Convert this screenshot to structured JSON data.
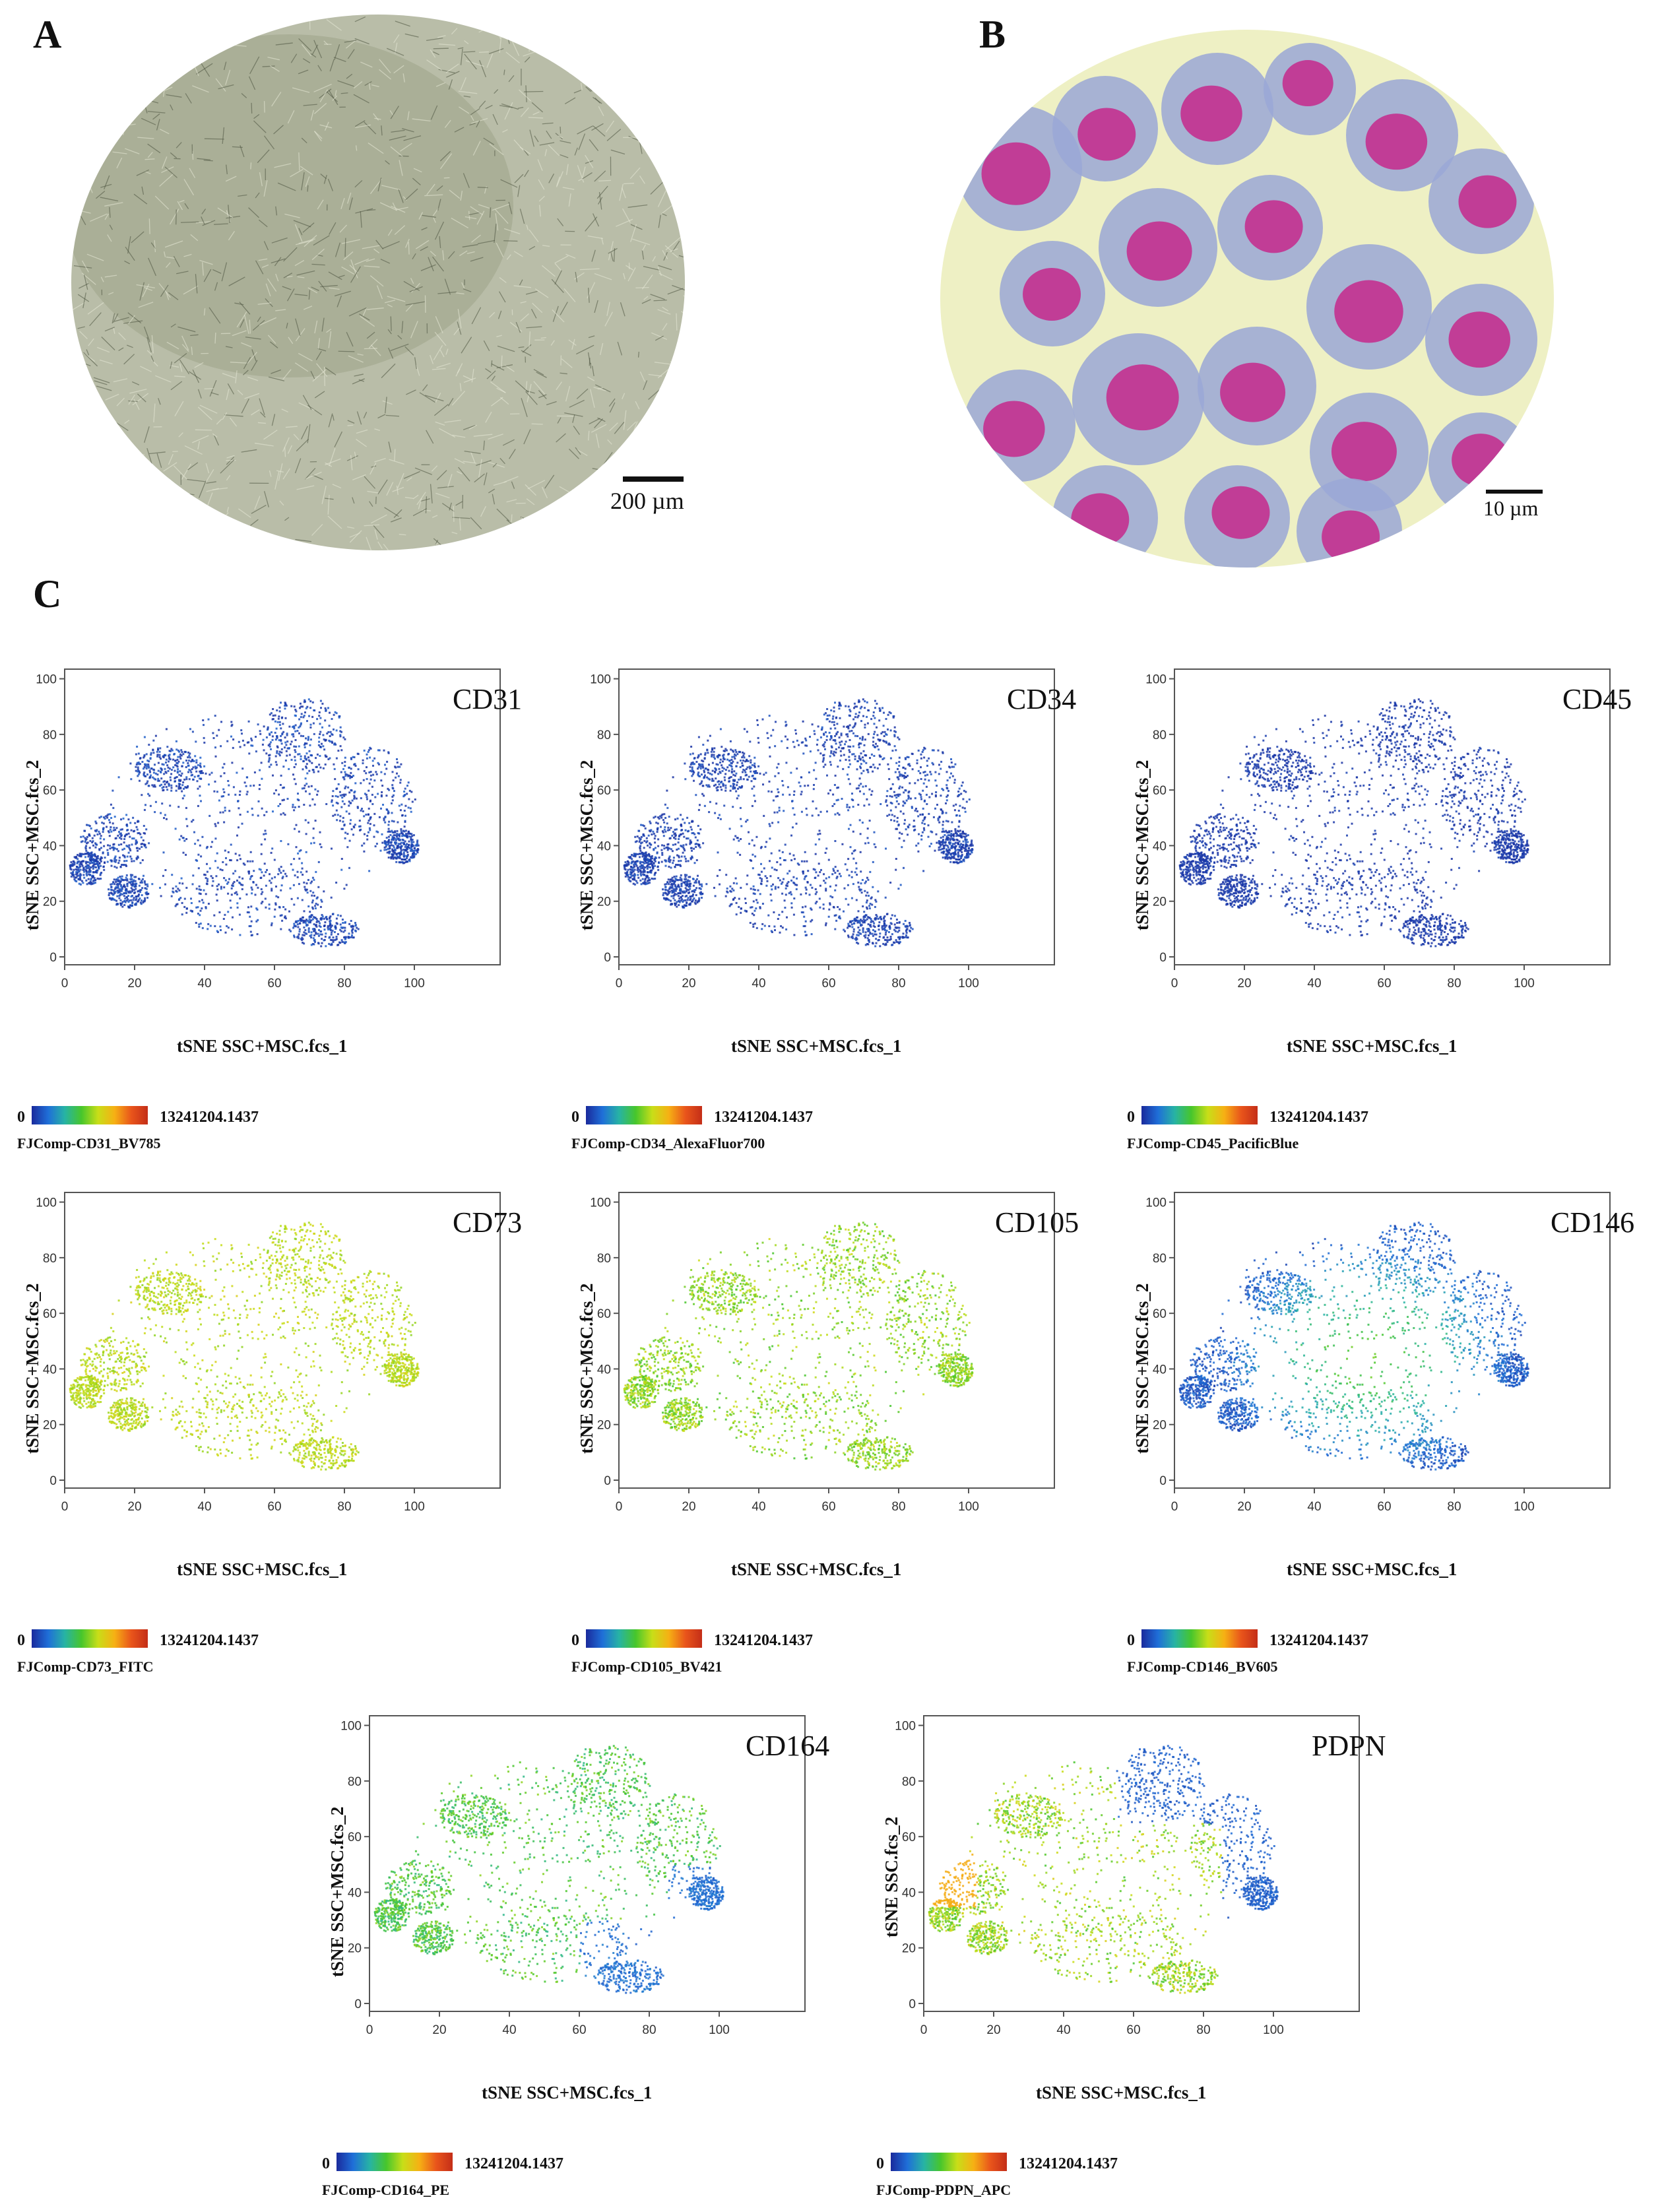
{
  "panels": {
    "a": {
      "letter": "A",
      "scale_label": "200 µm"
    },
    "b": {
      "letter": "B",
      "scale_label": "10 µm"
    },
    "c": {
      "letter": "C"
    }
  },
  "colorbar": {
    "min_label": "0",
    "max_label": "13241204.1437"
  },
  "colors": {
    "gradient": [
      "#1a2a9c",
      "#1f6fd8",
      "#27b3a4",
      "#47c62c",
      "#c8de18",
      "#f6b014",
      "#e9551b",
      "#c42e18"
    ],
    "micro_a_bg": "#b9bda8",
    "micro_b_bg": "#eef0c4"
  },
  "chart_data": [
    {
      "type": "scatter",
      "marker": "CD31",
      "title": "CD31",
      "xlabel": "tSNE SSC+MSC.fcs_1",
      "ylabel": "tSNE SSC+MSC.fcs_2",
      "xlim": [
        0,
        100
      ],
      "ylim": [
        0,
        100
      ],
      "x_ticks": [
        "0",
        "20",
        "40",
        "60",
        "80",
        "100"
      ],
      "y_ticks": [
        "0",
        "20",
        "40",
        "60",
        "80",
        "100"
      ],
      "channel": "FJComp-CD31_BV785",
      "level_low": 0.02,
      "level_high": 0.12,
      "pattern": "low"
    },
    {
      "type": "scatter",
      "marker": "CD34",
      "title": "CD34",
      "xlabel": "tSNE SSC+MSC.fcs_1",
      "ylabel": "tSNE SSC+MSC.fcs_2",
      "xlim": [
        0,
        100
      ],
      "ylim": [
        0,
        100
      ],
      "x_ticks": [
        "0",
        "20",
        "40",
        "60",
        "80",
        "100"
      ],
      "y_ticks": [
        "0",
        "20",
        "40",
        "60",
        "80",
        "100"
      ],
      "channel": "FJComp-CD34_AlexaFluor700",
      "level_low": 0.02,
      "level_high": 0.1,
      "pattern": "low"
    },
    {
      "type": "scatter",
      "marker": "CD45",
      "title": "CD45",
      "xlabel": "tSNE SSC+MSC.fcs_1",
      "ylabel": "tSNE SSC+MSC.fcs_2",
      "xlim": [
        0,
        100
      ],
      "ylim": [
        0,
        100
      ],
      "x_ticks": [
        "0",
        "20",
        "40",
        "60",
        "80",
        "100"
      ],
      "y_ticks": [
        "0",
        "20",
        "40",
        "60",
        "80",
        "100"
      ],
      "channel": "FJComp-CD45_PacificBlue",
      "level_low": 0.02,
      "level_high": 0.06,
      "pattern": "low"
    },
    {
      "type": "scatter",
      "marker": "CD73",
      "title": "CD73",
      "xlabel": "tSNE SSC+MSC.fcs_1",
      "ylabel": "tSNE SSC+MSC.fcs_2",
      "xlim": [
        0,
        100
      ],
      "ylim": [
        0,
        100
      ],
      "x_ticks": [
        "0",
        "20",
        "40",
        "60",
        "80",
        "100"
      ],
      "y_ticks": [
        "0",
        "20",
        "40",
        "60",
        "80",
        "100"
      ],
      "channel": "FJComp-CD73_FITC",
      "level_low": 0.5,
      "level_high": 0.62,
      "pattern": "uniform"
    },
    {
      "type": "scatter",
      "marker": "CD105",
      "title": "CD105",
      "xlabel": "tSNE SSC+MSC.fcs_1",
      "ylabel": "tSNE SSC+MSC.fcs_2",
      "xlim": [
        0,
        100
      ],
      "ylim": [
        0,
        100
      ],
      "x_ticks": [
        "0",
        "20",
        "40",
        "60",
        "80",
        "100"
      ],
      "y_ticks": [
        "0",
        "20",
        "40",
        "60",
        "80",
        "100"
      ],
      "channel": "FJComp-CD105_BV421",
      "level_low": 0.42,
      "level_high": 0.6,
      "pattern": "uniform"
    },
    {
      "type": "scatter",
      "marker": "CD146",
      "title": "CD146",
      "xlabel": "tSNE SSC+MSC.fcs_1",
      "ylabel": "tSNE SSC+MSC.fcs_2",
      "xlim": [
        0,
        100
      ],
      "ylim": [
        0,
        100
      ],
      "x_ticks": [
        "0",
        "20",
        "40",
        "60",
        "80",
        "100"
      ],
      "y_ticks": [
        "0",
        "20",
        "40",
        "60",
        "80",
        "100"
      ],
      "channel": "FJComp-CD146_BV605",
      "level_low": 0.1,
      "level_high": 0.5,
      "pattern": "center"
    },
    {
      "type": "scatter",
      "marker": "CD164",
      "title": "CD164",
      "xlabel": "tSNE SSC+MSC.fcs_1",
      "ylabel": "tSNE SSC+MSC.fcs_2",
      "xlim": [
        0,
        100
      ],
      "ylim": [
        0,
        100
      ],
      "x_ticks": [
        "0",
        "20",
        "40",
        "60",
        "80",
        "100"
      ],
      "y_ticks": [
        "0",
        "20",
        "40",
        "60",
        "80",
        "100"
      ],
      "channel": "FJComp-CD164_PE",
      "level_low": 0.1,
      "level_high": 0.55,
      "pattern": "rightlow"
    },
    {
      "type": "scatter",
      "marker": "PDPN",
      "title": "PDPN",
      "xlabel": "tSNE SSC+MSC.fcs_1",
      "ylabel": "tSNE SSC.fcs_2",
      "xlim": [
        0,
        100
      ],
      "ylim": [
        0,
        100
      ],
      "x_ticks": [
        "0",
        "20",
        "40",
        "60",
        "80",
        "100"
      ],
      "y_ticks": [
        "0",
        "20",
        "40",
        "60",
        "80",
        "100"
      ],
      "channel": "FJComp-PDPN_APC",
      "level_low": 0.08,
      "level_high": 0.72,
      "pattern": "pdpn"
    }
  ]
}
